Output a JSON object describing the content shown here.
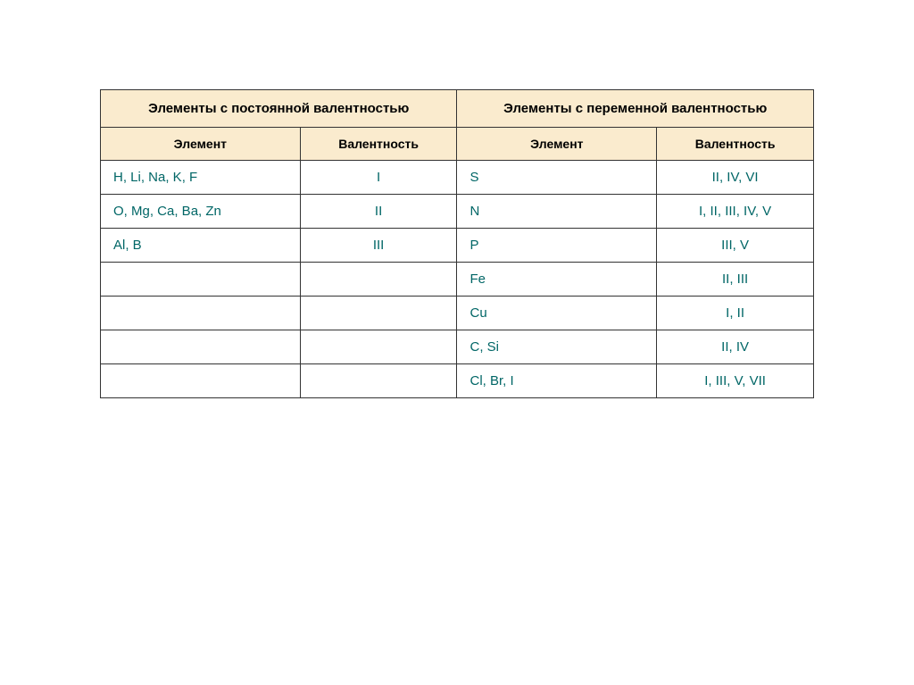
{
  "table": {
    "header_bg": "#faebce",
    "border_color": "#333333",
    "elem_text_color": "#006666",
    "groups": [
      "Элементы с постоянной валентностью",
      "Элементы с переменной валентностью"
    ],
    "subheaders": [
      "Элемент",
      "Валентность",
      "Элемент",
      "Валентность"
    ],
    "rows": [
      {
        "c1": "H, Li, Na, K, F",
        "c2": "I",
        "c3": "S",
        "c4": "II, IV, VI"
      },
      {
        "c1": "O, Mg, Ca, Ba, Zn",
        "c2": "II",
        "c3": "N",
        "c4": "I, II, III, IV, V"
      },
      {
        "c1": "Al, B",
        "c2": "III",
        "c3": "P",
        "c4": "III, V"
      },
      {
        "c1": "",
        "c2": "",
        "c3": "Fe",
        "c4": "II, III"
      },
      {
        "c1": "",
        "c2": "",
        "c3": "Cu",
        "c4": "I, II"
      },
      {
        "c1": "",
        "c2": "",
        "c3": "C, Si",
        "c4": "II, IV"
      },
      {
        "c1": "",
        "c2": "",
        "c3": "Cl, Br, I",
        "c4": "I, III, V, VII"
      }
    ]
  }
}
